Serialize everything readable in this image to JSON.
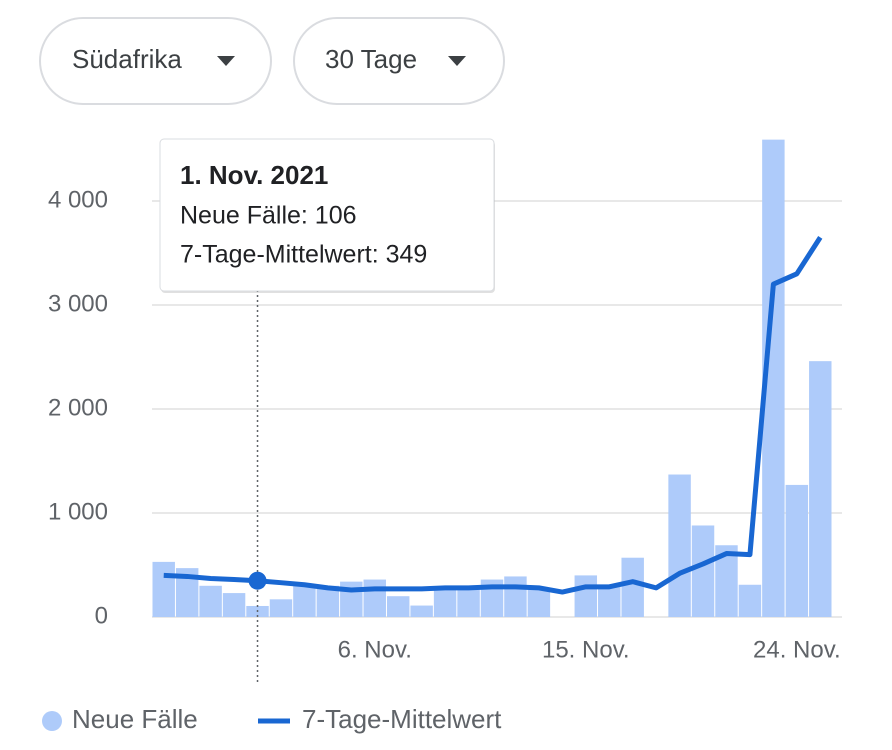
{
  "controls": {
    "region": "Südafrika",
    "range": "30 Tage"
  },
  "chart_data": {
    "type": "bar-line",
    "categories": [
      null,
      null,
      null,
      null,
      null,
      null,
      null,
      null,
      null,
      "6. Nov.",
      null,
      null,
      null,
      null,
      null,
      null,
      null,
      null,
      "15. Nov.",
      null,
      null,
      null,
      null,
      null,
      null,
      null,
      null,
      "24. Nov.",
      null
    ],
    "series": [
      {
        "name": "Neue Fälle",
        "color": "#aecbfa",
        "type": "bar",
        "values": [
          530,
          470,
          300,
          230,
          106,
          170,
          310,
          300,
          340,
          360,
          200,
          110,
          270,
          280,
          360,
          390,
          270,
          0,
          400,
          290,
          570,
          0,
          1370,
          880,
          690,
          310,
          4590,
          1270,
          2460
        ]
      },
      {
        "name": "7-Tage-Mittelwert",
        "color": "#1967d2",
        "type": "line",
        "values": [
          400,
          390,
          370,
          360,
          349,
          330,
          310,
          280,
          260,
          270,
          270,
          270,
          280,
          280,
          290,
          290,
          280,
          240,
          290,
          290,
          340,
          280,
          420,
          510,
          610,
          600,
          3200,
          3300,
          3650
        ]
      }
    ],
    "ylim": [
      0,
      4600
    ],
    "yticks": [
      0,
      {
        "value": 1000,
        "label": "1 000"
      },
      {
        "value": 2000,
        "label": "2 000"
      },
      {
        "value": 3000,
        "label": "3 000"
      },
      {
        "value": 4000,
        "label": "4 000"
      }
    ],
    "grid": true,
    "tooltip": {
      "index": 4,
      "date": "1. Nov. 2021",
      "lines": [
        "Neue Fälle: 106",
        "7-Tage-Mittelwert: 349"
      ]
    }
  }
}
